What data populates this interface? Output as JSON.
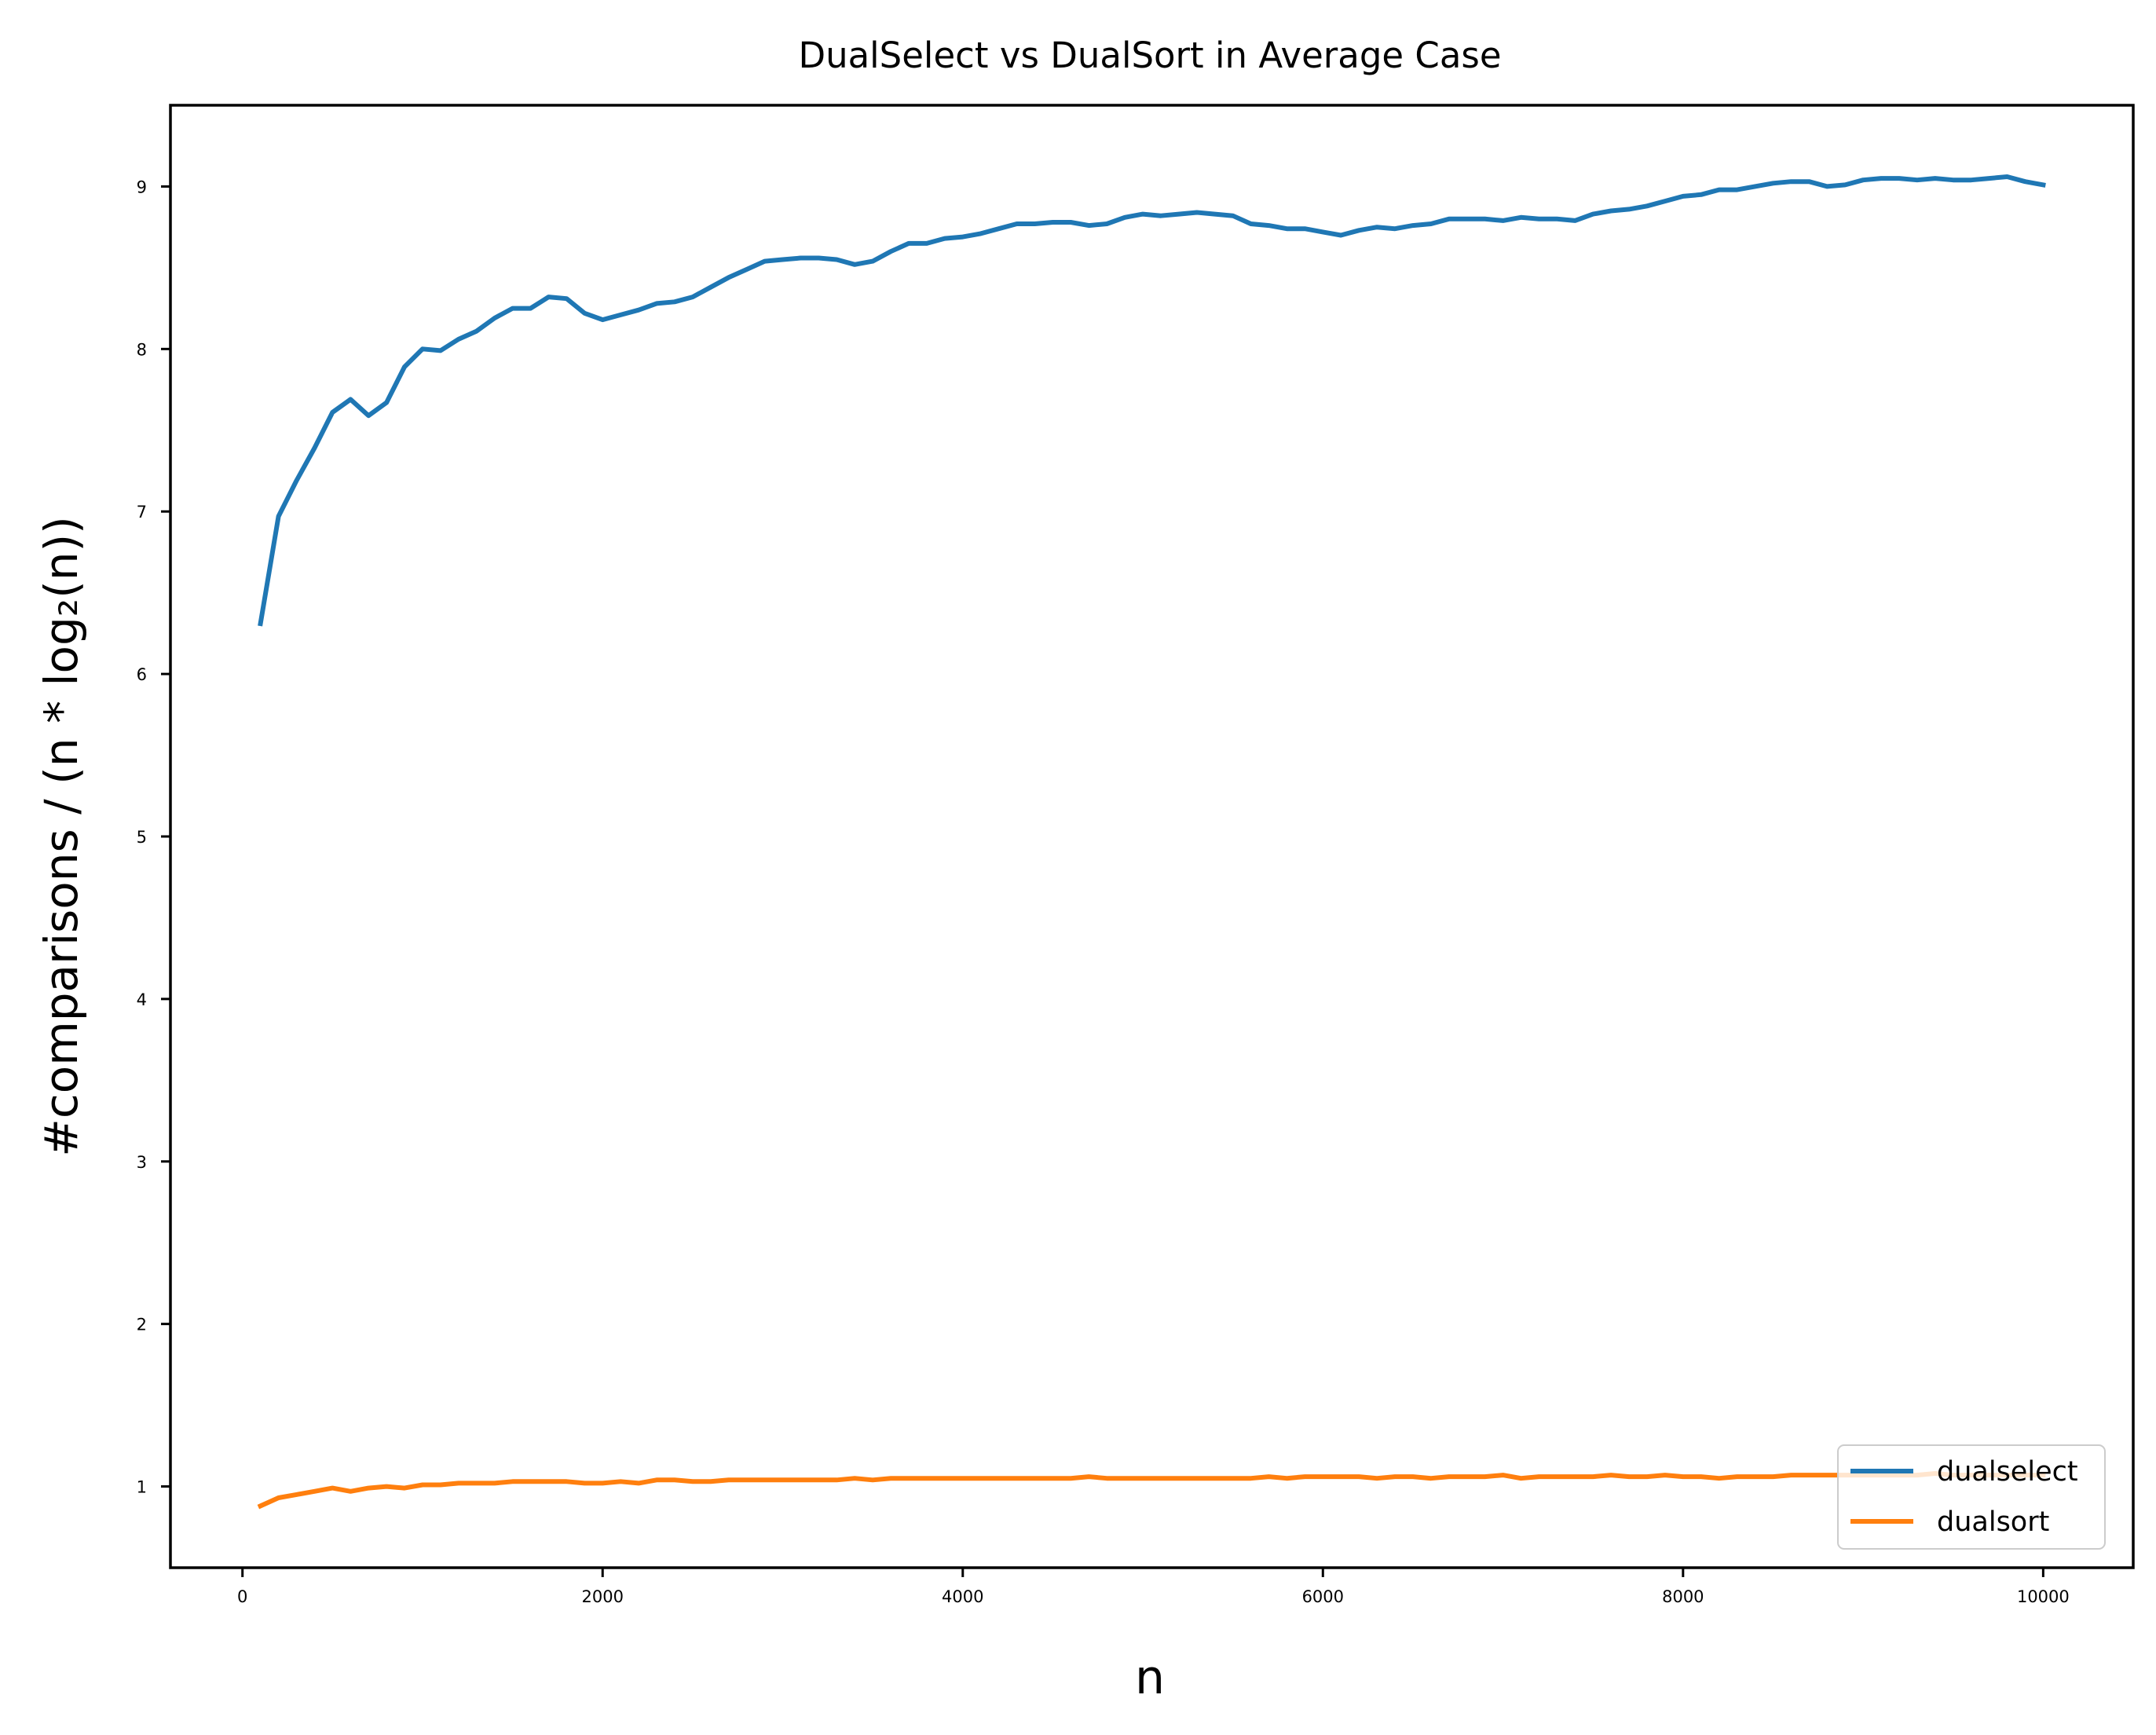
{
  "chart_data": {
    "type": "line",
    "title": "DualSelect vs DualSort in Average Case",
    "xlabel": "n",
    "ylabel": "#comparisons / (n * log₂(n))",
    "xlim": [
      -400,
      10500
    ],
    "ylim": [
      0.5,
      9.5
    ],
    "x_ticks": [
      0,
      2000,
      4000,
      6000,
      8000,
      10000
    ],
    "y_ticks": [
      1,
      2,
      3,
      4,
      5,
      6,
      7,
      8,
      9
    ],
    "grid": false,
    "legend_position": "lower-right",
    "x": [
      100,
      200,
      300,
      400,
      500,
      600,
      700,
      800,
      900,
      1000,
      1100,
      1200,
      1300,
      1400,
      1500,
      1600,
      1700,
      1800,
      1900,
      2000,
      2100,
      2200,
      2300,
      2400,
      2500,
      2600,
      2700,
      2800,
      2900,
      3000,
      3100,
      3200,
      3300,
      3400,
      3500,
      3600,
      3700,
      3800,
      3900,
      4000,
      4100,
      4200,
      4300,
      4400,
      4500,
      4600,
      4700,
      4800,
      4900,
      5000,
      5100,
      5200,
      5300,
      5400,
      5500,
      5600,
      5700,
      5800,
      5900,
      6000,
      6100,
      6200,
      6300,
      6400,
      6500,
      6600,
      6700,
      6800,
      6900,
      7000,
      7100,
      7200,
      7300,
      7400,
      7500,
      7600,
      7700,
      7800,
      7900,
      8000,
      8100,
      8200,
      8300,
      8400,
      8500,
      8600,
      8700,
      8800,
      8900,
      9000,
      9100,
      9200,
      9300,
      9400,
      9500,
      9600,
      9700,
      9800,
      9900,
      10000
    ],
    "series": [
      {
        "name": "dualselect",
        "color": "#1f77b4",
        "values": [
          6.31,
          6.97,
          7.19,
          7.39,
          7.61,
          7.69,
          7.59,
          7.67,
          7.89,
          8.0,
          7.99,
          8.06,
          8.11,
          8.19,
          8.25,
          8.25,
          8.32,
          8.31,
          8.22,
          8.18,
          8.21,
          8.24,
          8.28,
          8.29,
          8.32,
          8.38,
          8.44,
          8.49,
          8.54,
          8.55,
          8.56,
          8.56,
          8.55,
          8.52,
          8.54,
          8.6,
          8.65,
          8.65,
          8.68,
          8.69,
          8.71,
          8.74,
          8.77,
          8.77,
          8.78,
          8.78,
          8.76,
          8.77,
          8.81,
          8.83,
          8.82,
          8.83,
          8.84,
          8.83,
          8.82,
          8.77,
          8.76,
          8.74,
          8.74,
          8.72,
          8.7,
          8.73,
          8.75,
          8.74,
          8.76,
          8.77,
          8.8,
          8.8,
          8.8,
          8.79,
          8.81,
          8.8,
          8.8,
          8.79,
          8.83,
          8.85,
          8.86,
          8.88,
          8.91,
          8.94,
          8.95,
          8.98,
          8.98,
          9.0,
          9.02,
          9.03,
          9.03,
          9.0,
          9.01,
          9.04,
          9.05,
          9.05,
          9.04,
          9.05,
          9.04,
          9.04,
          9.05,
          9.06,
          9.03,
          9.01
        ]
      },
      {
        "name": "dualsort",
        "color": "#ff7f0e",
        "values": [
          0.88,
          0.93,
          0.95,
          0.97,
          0.99,
          0.97,
          0.99,
          1.0,
          0.99,
          1.01,
          1.01,
          1.02,
          1.02,
          1.02,
          1.03,
          1.03,
          1.03,
          1.03,
          1.02,
          1.02,
          1.03,
          1.02,
          1.04,
          1.04,
          1.03,
          1.03,
          1.04,
          1.04,
          1.04,
          1.04,
          1.04,
          1.04,
          1.04,
          1.05,
          1.04,
          1.05,
          1.05,
          1.05,
          1.05,
          1.05,
          1.05,
          1.05,
          1.05,
          1.05,
          1.05,
          1.05,
          1.06,
          1.05,
          1.05,
          1.05,
          1.05,
          1.05,
          1.05,
          1.05,
          1.05,
          1.05,
          1.06,
          1.05,
          1.06,
          1.06,
          1.06,
          1.06,
          1.05,
          1.06,
          1.06,
          1.05,
          1.06,
          1.06,
          1.06,
          1.07,
          1.05,
          1.06,
          1.06,
          1.06,
          1.06,
          1.07,
          1.06,
          1.06,
          1.07,
          1.06,
          1.06,
          1.05,
          1.06,
          1.06,
          1.06,
          1.07,
          1.07,
          1.07,
          1.07,
          1.07,
          1.07,
          1.07,
          1.07,
          1.08,
          1.07,
          1.07,
          1.07,
          1.07,
          1.07,
          1.07
        ]
      }
    ]
  }
}
